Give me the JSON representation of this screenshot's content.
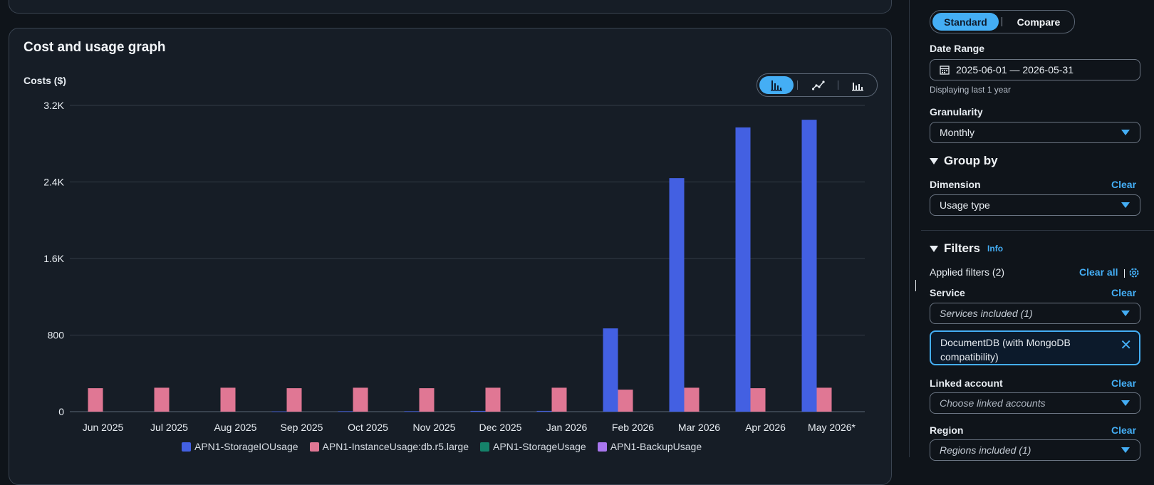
{
  "graph": {
    "title": "Cost and usage graph",
    "chart_type_options": [
      "bar-chart-icon",
      "line-chart-icon",
      "stacked-bar-chart-icon"
    ]
  },
  "chart_data": {
    "type": "bar",
    "ylabel": "Costs ($)",
    "xlabel": "",
    "ylim": [
      0,
      3200
    ],
    "yticks": [
      0,
      800,
      1600,
      2400,
      3200
    ],
    "ytick_labels": [
      "0",
      "800",
      "1.6K",
      "2.4K",
      "3.2K"
    ],
    "categories": [
      "Jun 2025",
      "Jul 2025",
      "Aug 2025",
      "Sep 2025",
      "Oct 2025",
      "Nov 2025",
      "Dec 2025",
      "Jan 2026",
      "Feb 2026",
      "Mar 2026",
      "Apr 2026",
      "May 2026*"
    ],
    "series": [
      {
        "name": "APN1-StorageIOUsage",
        "color": "#4360e2",
        "values": [
          0,
          0,
          0,
          3,
          5,
          5,
          8,
          8,
          870,
          2440,
          2970,
          3050
        ]
      },
      {
        "name": "APN1-InstanceUsage:db.r5.large",
        "color": "#e07794",
        "values": [
          245,
          250,
          250,
          245,
          250,
          245,
          250,
          250,
          230,
          250,
          245,
          250
        ]
      },
      {
        "name": "APN1-StorageUsage",
        "color": "#15826a",
        "values": [
          0,
          0,
          0,
          0,
          0,
          0,
          0,
          0,
          0,
          0,
          0,
          0
        ]
      },
      {
        "name": "APN1-BackupUsage",
        "color": "#a977ef",
        "values": [
          0,
          0,
          0,
          0,
          0,
          0,
          0,
          0,
          0,
          0,
          0,
          0
        ]
      }
    ],
    "grid": true,
    "legend_position": "bottom"
  },
  "sidebar": {
    "view_mode": {
      "standard": "Standard",
      "compare": "Compare"
    },
    "date_range": {
      "label": "Date Range",
      "value": "2025-06-01 — 2026-05-31",
      "hint": "Displaying last 1 year"
    },
    "granularity": {
      "label": "Granularity",
      "value": "Monthly"
    },
    "group_by": {
      "title": "Group by",
      "dimension_label": "Dimension",
      "clear": "Clear",
      "value": "Usage type"
    },
    "filters": {
      "title": "Filters",
      "info": "Info",
      "applied": "Applied filters (2)",
      "clear_all": "Clear all",
      "service": {
        "label": "Service",
        "clear": "Clear",
        "value": "Services included (1)",
        "token": "DocumentDB (with MongoDB compatibility)"
      },
      "linked_account": {
        "label": "Linked account",
        "clear": "Clear",
        "placeholder": "Choose linked accounts"
      },
      "region": {
        "label": "Region",
        "clear": "Clear",
        "value": "Regions included (1)"
      }
    }
  }
}
